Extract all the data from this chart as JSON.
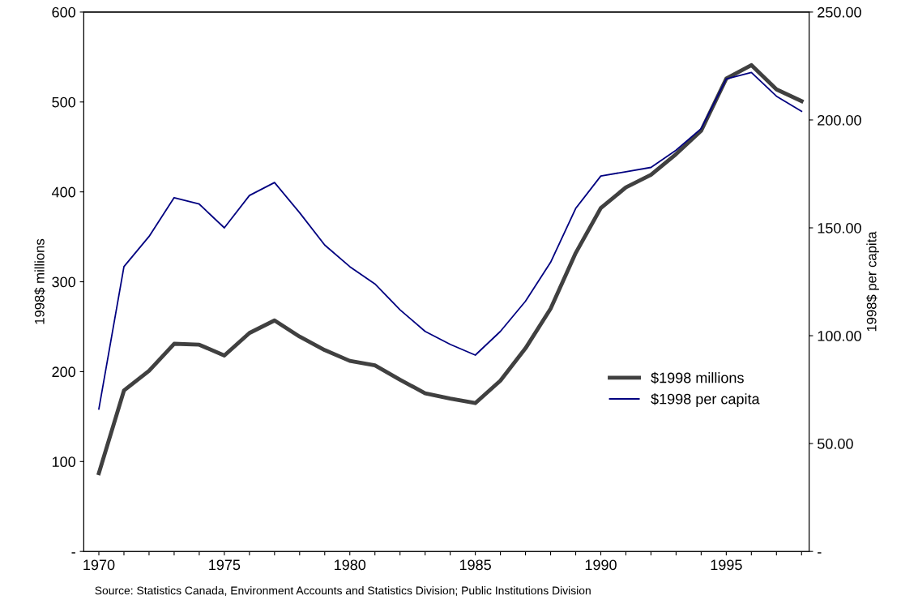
{
  "chart_data": {
    "type": "line",
    "ylabel": "1998$ millions",
    "y2label": "1998$ per capita",
    "categories": [
      "1970",
      null,
      null,
      null,
      null,
      "1975",
      null,
      null,
      null,
      null,
      "1980",
      null,
      null,
      null,
      null,
      "1985",
      null,
      null,
      null,
      null,
      "1990",
      null,
      null,
      null,
      null,
      "1995",
      null,
      null,
      null
    ],
    "series": [
      {
        "name": "$1998 millions",
        "color": "#404040",
        "values": [
          87,
          179,
          201,
          231,
          230,
          218,
          243,
          257,
          239,
          224,
          212,
          207,
          191,
          176,
          170,
          165,
          190,
          226,
          270,
          332,
          382,
          405,
          419,
          442,
          468,
          526,
          541,
          514,
          501
        ]
      },
      {
        "name": "$1998 per capita",
        "color": "#000080",
        "axis": "y2",
        "values": [
          66,
          132,
          146,
          164,
          161,
          150,
          165,
          171,
          157,
          142,
          132,
          124,
          112,
          102,
          96,
          91,
          102,
          116,
          134,
          159,
          174,
          176,
          178,
          186,
          196,
          219,
          222,
          211,
          204
        ]
      }
    ],
    "ylim": [
      0,
      600
    ],
    "yticks": [
      {
        "value": 0,
        "label": "-"
      },
      100,
      200,
      300,
      400,
      500,
      600
    ],
    "y2lim": [
      0,
      250
    ],
    "y2ticks": [
      {
        "value": 0,
        "label": "-"
      },
      {
        "value": 50,
        "label": "50.00"
      },
      {
        "value": 100,
        "label": "100.00"
      },
      {
        "value": 150,
        "label": "150.00"
      },
      {
        "value": 200,
        "label": "200.00"
      },
      {
        "value": 250,
        "label": "250.00"
      }
    ],
    "legend": "right",
    "grid": false,
    "annotations": [
      "Source: Statistics Canada, Environment Accounts and Statistics Division; Public Institutions Division"
    ]
  }
}
